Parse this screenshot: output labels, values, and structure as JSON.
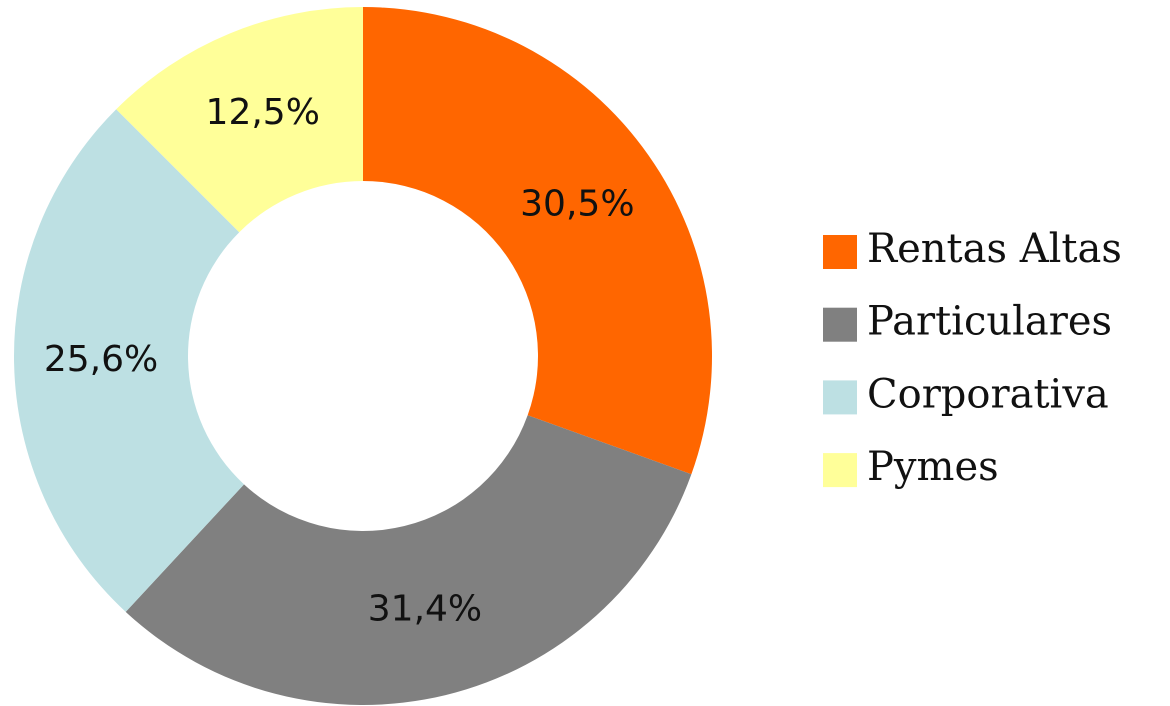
{
  "chart_data": {
    "type": "donut",
    "categories": [
      "Rentas Altas",
      "Particulares",
      "Corporativa",
      "Pymes"
    ],
    "values": [
      30.5,
      31.4,
      25.6,
      12.5
    ],
    "value_labels": [
      "30,5%",
      "31,4%",
      "25,6%",
      "12,5%"
    ],
    "colors": [
      "#ff6600",
      "#808080",
      "#bde0e3",
      "#ffff99"
    ],
    "legend": "right"
  }
}
